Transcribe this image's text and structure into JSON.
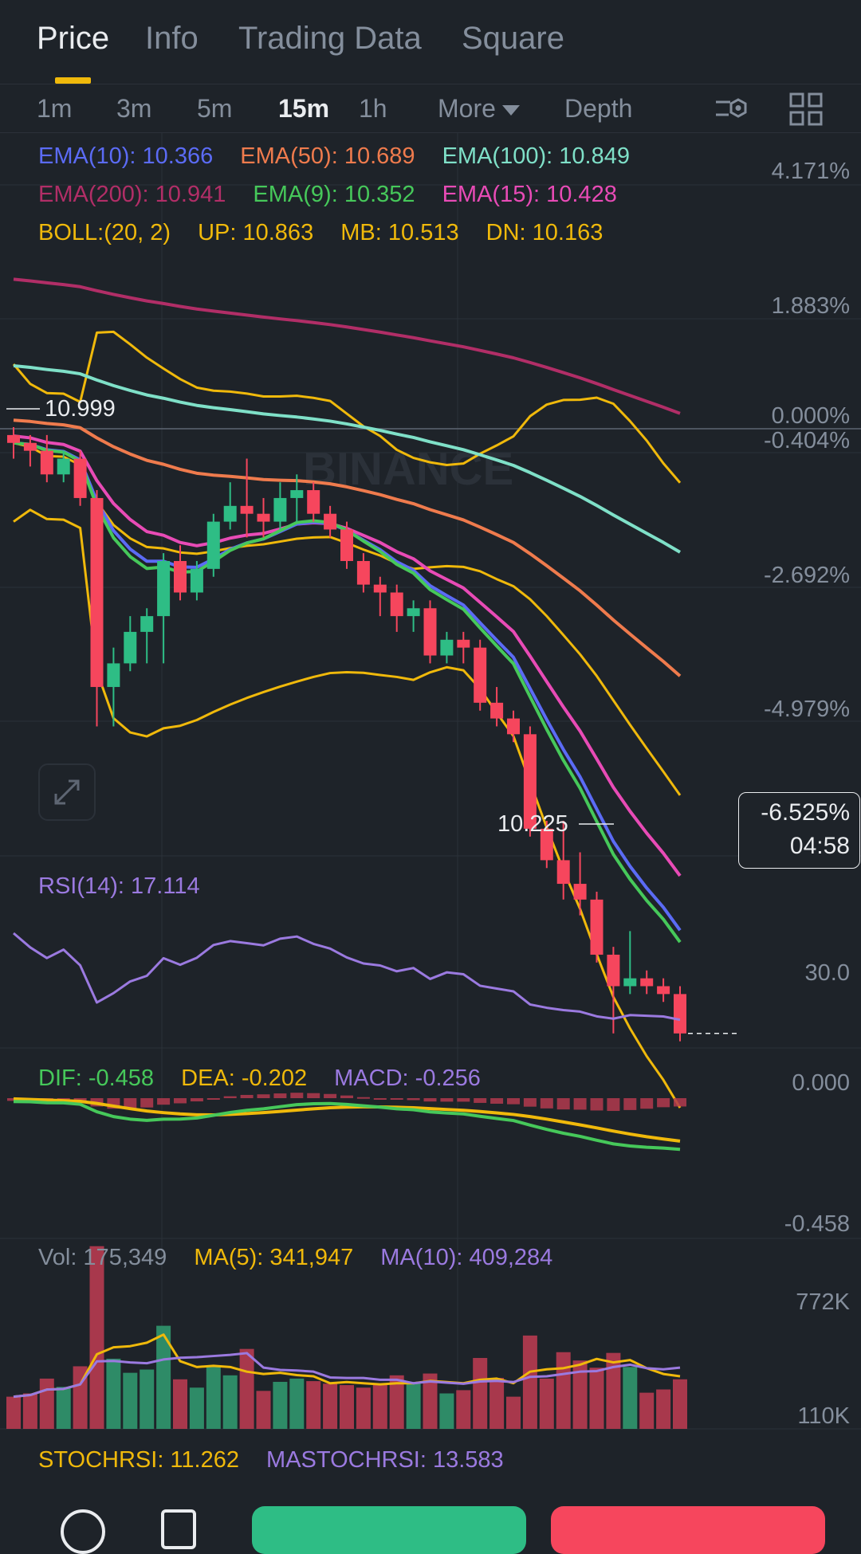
{
  "tabs": [
    "Price",
    "Info",
    "Trading Data",
    "Square"
  ],
  "intervals": {
    "items": [
      "1m",
      "3m",
      "5m",
      "15m",
      "1h"
    ],
    "active": "15m",
    "more_label": "More",
    "depth_label": "Depth"
  },
  "legend": {
    "row1": [
      {
        "text": "EMA(10): 10.366",
        "color": "#5b6bf5"
      },
      {
        "text": "EMA(50): 10.689",
        "color": "#ef7b4d"
      },
      {
        "text": "EMA(100): 10.849",
        "color": "#7fe0c8"
      }
    ],
    "row2": [
      {
        "text": "EMA(200): 10.941",
        "color": "#b12e67"
      },
      {
        "text": "EMA(9): 10.352",
        "color": "#46c85a"
      },
      {
        "text": "EMA(15): 10.428",
        "color": "#e84bb6"
      }
    ],
    "row3": [
      {
        "text": "BOLL:(20, 2)",
        "color": "#f0b90b"
      },
      {
        "text": "UP: 10.863",
        "color": "#f0b90b"
      },
      {
        "text": "MB: 10.513",
        "color": "#f0b90b"
      },
      {
        "text": "DN: 10.163",
        "color": "#f0b90b"
      }
    ]
  },
  "price_axis": [
    "4.171%",
    "1.883%",
    "0.000%",
    "-0.404%",
    "-2.692%",
    "-4.979%"
  ],
  "high_marker": "10.999",
  "low_marker": "10.225",
  "watermark": "BINANCE",
  "current_badge": {
    "pct": "-6.525%",
    "countdown": "04:58"
  },
  "rsi": {
    "label": "RSI(14): 17.114",
    "level": "30.0",
    "color": "#9b7ae0"
  },
  "macd": {
    "dif": "DIF: -0.458",
    "dea": "DEA: -0.202",
    "macd": "MACD: -0.256",
    "axis_top": "0.000",
    "axis_bottom": "-0.458"
  },
  "volume": {
    "vol": "Vol: 175,349",
    "ma5": "MA(5): 341,947",
    "ma10": "MA(10): 409,284",
    "axis_top": "772K",
    "axis_bottom": "110K"
  },
  "stochrsi": {
    "stoch": "STOCHRSI: 11.262",
    "mastoch": "MASTOCHRSI: 13.583"
  },
  "colors": {
    "up": "#2ebd85",
    "down": "#f6465d",
    "accent": "#f0b90b",
    "bg": "#1e2329"
  },
  "candles": [
    {
      "o": 10.99,
      "h": 11.0,
      "l": 10.96,
      "c": 10.98
    },
    {
      "o": 10.98,
      "h": 10.99,
      "l": 10.95,
      "c": 10.97
    },
    {
      "o": 10.97,
      "h": 10.99,
      "l": 10.93,
      "c": 10.94
    },
    {
      "o": 10.94,
      "h": 10.97,
      "l": 10.93,
      "c": 10.96
    },
    {
      "o": 10.96,
      "h": 10.97,
      "l": 10.9,
      "c": 10.91
    },
    {
      "o": 10.91,
      "h": 10.92,
      "l": 10.62,
      "c": 10.67
    },
    {
      "o": 10.67,
      "h": 10.72,
      "l": 10.62,
      "c": 10.7
    },
    {
      "o": 10.7,
      "h": 10.76,
      "l": 10.69,
      "c": 10.74
    },
    {
      "o": 10.74,
      "h": 10.77,
      "l": 10.7,
      "c": 10.76
    },
    {
      "o": 10.76,
      "h": 10.84,
      "l": 10.7,
      "c": 10.83
    },
    {
      "o": 10.83,
      "h": 10.85,
      "l": 10.78,
      "c": 10.79
    },
    {
      "o": 10.79,
      "h": 10.83,
      "l": 10.78,
      "c": 10.82
    },
    {
      "o": 10.82,
      "h": 10.89,
      "l": 10.81,
      "c": 10.88
    },
    {
      "o": 10.88,
      "h": 10.93,
      "l": 10.87,
      "c": 10.9
    },
    {
      "o": 10.9,
      "h": 10.96,
      "l": 10.86,
      "c": 10.89
    },
    {
      "o": 10.89,
      "h": 10.91,
      "l": 10.86,
      "c": 10.88
    },
    {
      "o": 10.88,
      "h": 10.93,
      "l": 10.87,
      "c": 10.91
    },
    {
      "o": 10.91,
      "h": 10.94,
      "l": 10.88,
      "c": 10.92
    },
    {
      "o": 10.92,
      "h": 10.93,
      "l": 10.88,
      "c": 10.89
    },
    {
      "o": 10.89,
      "h": 10.9,
      "l": 10.86,
      "c": 10.87
    },
    {
      "o": 10.87,
      "h": 10.88,
      "l": 10.82,
      "c": 10.83
    },
    {
      "o": 10.83,
      "h": 10.84,
      "l": 10.79,
      "c": 10.8
    },
    {
      "o": 10.8,
      "h": 10.81,
      "l": 10.76,
      "c": 10.79
    },
    {
      "o": 10.79,
      "h": 10.8,
      "l": 10.74,
      "c": 10.76
    },
    {
      "o": 10.76,
      "h": 10.78,
      "l": 10.74,
      "c": 10.77
    },
    {
      "o": 10.77,
      "h": 10.78,
      "l": 10.7,
      "c": 10.71
    },
    {
      "o": 10.71,
      "h": 10.74,
      "l": 10.7,
      "c": 10.73
    },
    {
      "o": 10.73,
      "h": 10.74,
      "l": 10.7,
      "c": 10.72
    },
    {
      "o": 10.72,
      "h": 10.73,
      "l": 10.64,
      "c": 10.65
    },
    {
      "o": 10.65,
      "h": 10.67,
      "l": 10.62,
      "c": 10.63
    },
    {
      "o": 10.63,
      "h": 10.64,
      "l": 10.6,
      "c": 10.61
    },
    {
      "o": 10.61,
      "h": 10.62,
      "l": 10.48,
      "c": 10.49
    },
    {
      "o": 10.49,
      "h": 10.5,
      "l": 10.44,
      "c": 10.45
    },
    {
      "o": 10.45,
      "h": 10.5,
      "l": 10.4,
      "c": 10.42
    },
    {
      "o": 10.42,
      "h": 10.46,
      "l": 10.38,
      "c": 10.4
    },
    {
      "o": 10.4,
      "h": 10.41,
      "l": 10.32,
      "c": 10.33
    },
    {
      "o": 10.33,
      "h": 10.34,
      "l": 10.23,
      "c": 10.29
    },
    {
      "o": 10.29,
      "h": 10.36,
      "l": 10.28,
      "c": 10.3
    },
    {
      "o": 10.3,
      "h": 10.31,
      "l": 10.28,
      "c": 10.29
    },
    {
      "o": 10.29,
      "h": 10.3,
      "l": 10.27,
      "c": 10.28
    },
    {
      "o": 10.28,
      "h": 10.29,
      "l": 10.22,
      "c": 10.23
    }
  ]
}
